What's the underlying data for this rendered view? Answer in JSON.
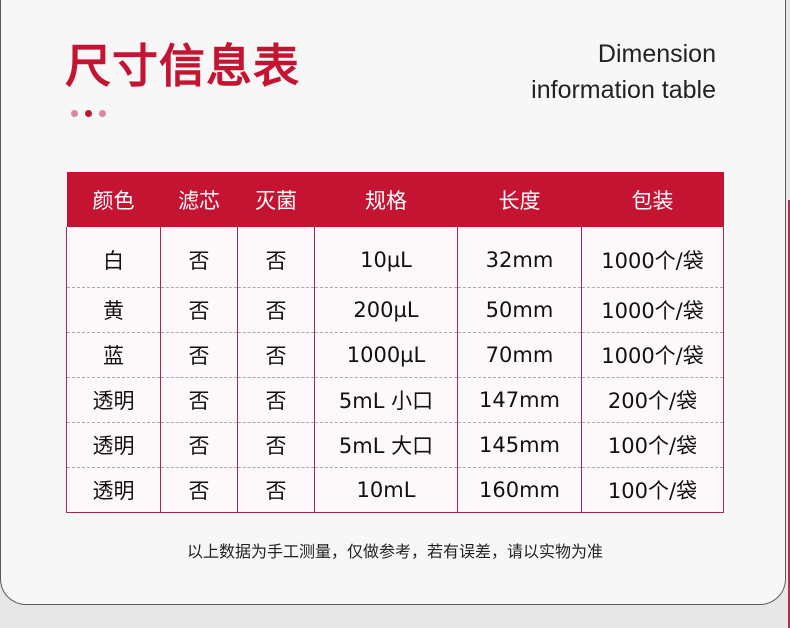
{
  "title": "尺寸信息表",
  "subtitle_en": [
    "Dimension",
    "information table"
  ],
  "colors": {
    "accent": "#c41432",
    "dots": [
      "#d98a9c",
      "#c41432",
      "#d98a9c"
    ]
  },
  "table": {
    "headers": [
      "颜色",
      "滤芯",
      "灭菌",
      "规格",
      "长度",
      "包装"
    ],
    "rows": [
      [
        "白",
        "否",
        "否",
        "10µL",
        "32mm",
        "1000个/袋"
      ],
      [
        "黄",
        "否",
        "否",
        "200µL",
        "50mm",
        "1000个/袋"
      ],
      [
        "蓝",
        "否",
        "否",
        "1000µL",
        "70mm",
        "1000个/袋"
      ],
      [
        "透明",
        "否",
        "否",
        "5mL 小口",
        "147mm",
        "200个/袋"
      ],
      [
        "透明",
        "否",
        "否",
        "5mL 大口",
        "145mm",
        "100个/袋"
      ],
      [
        "透明",
        "否",
        "否",
        "10mL",
        "160mm",
        "100个/袋"
      ]
    ]
  },
  "note": "以上数据为手工测量，仅做参考，若有误差，请以实物为准"
}
